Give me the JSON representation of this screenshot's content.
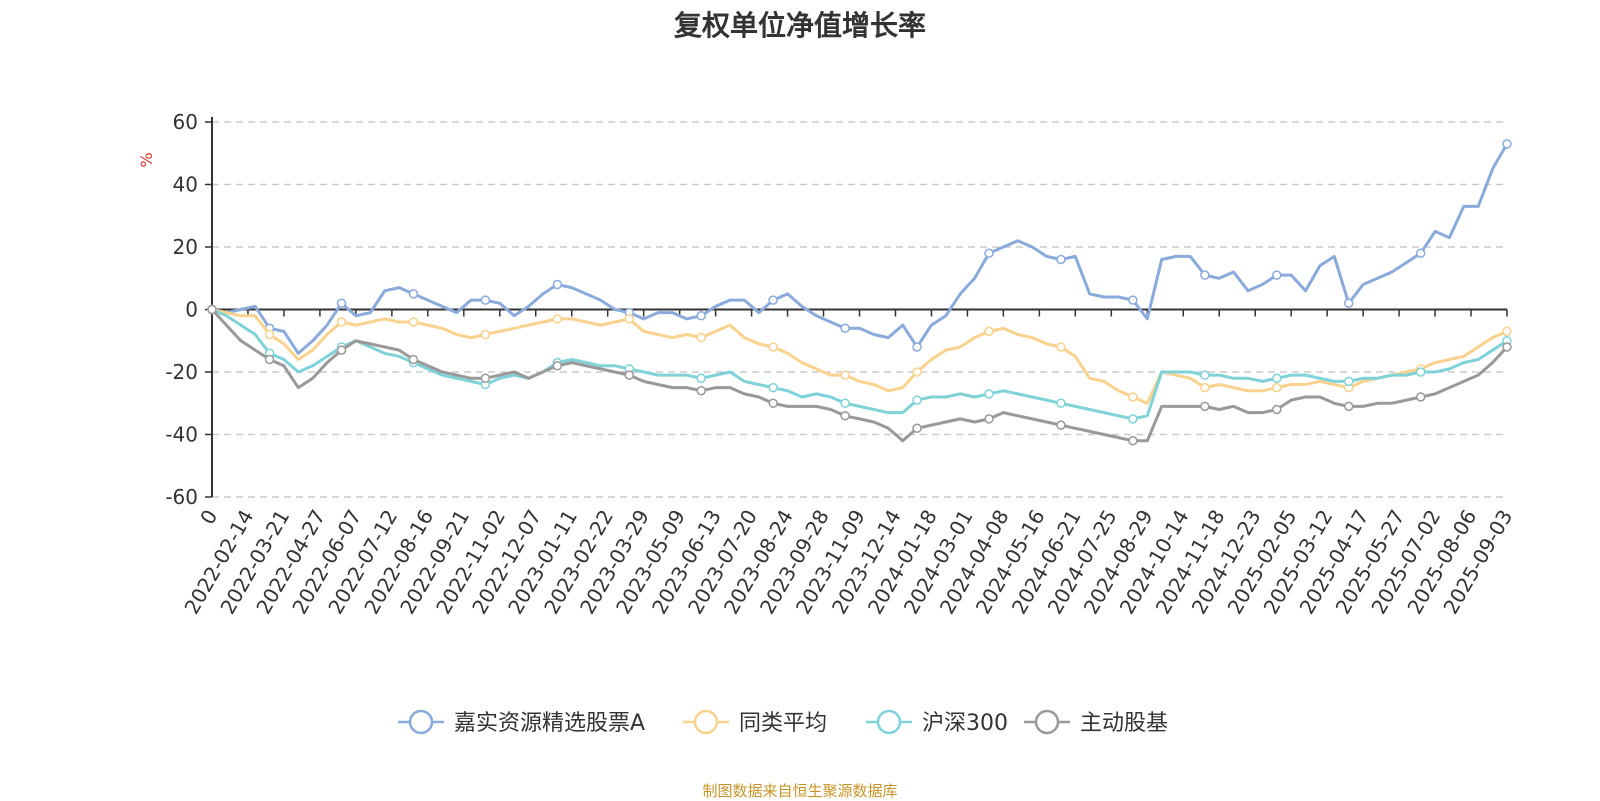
{
  "chart_data": {
    "type": "line",
    "title": "复权单位净值增长率",
    "ylabel": "%",
    "xlabel": "",
    "ylim": [
      -60,
      60
    ],
    "yticks": [
      60,
      40,
      20,
      0,
      -20,
      -40,
      -60
    ],
    "xticks": [
      "0",
      "2022-02-14",
      "2022-03-21",
      "2022-04-27",
      "2022-06-07",
      "2022-07-12",
      "2022-08-16",
      "2022-09-21",
      "2022-11-02",
      "2022-12-07",
      "2023-01-11",
      "2023-02-22",
      "2023-03-29",
      "2023-05-09",
      "2023-06-13",
      "2023-07-20",
      "2023-08-24",
      "2023-09-28",
      "2023-11-09",
      "2023-12-14",
      "2024-01-18",
      "2024-03-01",
      "2024-04-08",
      "2024-05-16",
      "2024-06-21",
      "2024-07-25",
      "2024-08-29",
      "2024-10-14",
      "2024-11-18",
      "2024-12-23",
      "2025-02-05",
      "2025-03-12",
      "2025-04-17",
      "2025-05-27",
      "2025-07-02",
      "2025-08-06",
      "2025-09-03"
    ],
    "grid": true,
    "legend_position": "bottom",
    "series": [
      {
        "name": "嘉实资源精选股票A",
        "color": "#8aaadc",
        "values": [
          0,
          -1,
          0,
          1,
          -6,
          -7,
          -14,
          -10,
          -5,
          2,
          -2,
          -1,
          6,
          7,
          5,
          3,
          1,
          -1,
          3,
          3,
          2,
          -2,
          1,
          5,
          8,
          7,
          5,
          3,
          0,
          -1,
          -3,
          -1,
          -1,
          -3,
          -2,
          1,
          3,
          3,
          -1,
          3,
          5,
          1,
          -2,
          -4,
          -6,
          -6,
          -8,
          -9,
          -5,
          -12,
          -5,
          -2,
          5,
          10,
          18,
          20,
          22,
          20,
          17,
          16,
          17,
          5,
          4,
          4,
          3,
          -3,
          16,
          17,
          17,
          11,
          10,
          12,
          6,
          8,
          11,
          11,
          6,
          14,
          17,
          2,
          8,
          10,
          12,
          15,
          18,
          25,
          23,
          33,
          33,
          45,
          53
        ]
      },
      {
        "name": "同类平均",
        "color": "#f9d28e",
        "values": [
          0,
          -1,
          -2,
          -2,
          -8,
          -11,
          -16,
          -13,
          -8,
          -4,
          -5,
          -4,
          -3,
          -4,
          -4,
          -5,
          -6,
          -8,
          -9,
          -8,
          -7,
          -6,
          -5,
          -4,
          -3,
          -3,
          -4,
          -5,
          -4,
          -3,
          -7,
          -8,
          -9,
          -8,
          -9,
          -7,
          -5,
          -9,
          -11,
          -12,
          -14,
          -17,
          -19,
          -21,
          -21,
          -23,
          -24,
          -26,
          -25,
          -20,
          -16,
          -13,
          -12,
          -9,
          -7,
          -6,
          -8,
          -9,
          -11,
          -12,
          -15,
          -22,
          -23,
          -26,
          -28,
          -30,
          -20,
          -21,
          -22,
          -25,
          -24,
          -25,
          -26,
          -26,
          -25,
          -24,
          -24,
          -23,
          -24,
          -25,
          -23,
          -22,
          -21,
          -20,
          -19,
          -17,
          -16,
          -15,
          -12,
          -9,
          -7
        ]
      },
      {
        "name": "沪深300",
        "color": "#7fd3d8",
        "values": [
          0,
          -2,
          -5,
          -8,
          -14,
          -16,
          -20,
          -18,
          -15,
          -12,
          -10,
          -12,
          -14,
          -15,
          -17,
          -19,
          -21,
          -22,
          -23,
          -24,
          -22,
          -21,
          -22,
          -20,
          -17,
          -16,
          -17,
          -18,
          -18,
          -19,
          -20,
          -21,
          -21,
          -21,
          -22,
          -21,
          -20,
          -23,
          -24,
          -25,
          -26,
          -28,
          -27,
          -28,
          -30,
          -31,
          -32,
          -33,
          -33,
          -29,
          -28,
          -28,
          -27,
          -28,
          -27,
          -26,
          -27,
          -28,
          -29,
          -30,
          -31,
          -32,
          -33,
          -34,
          -35,
          -34,
          -20,
          -20,
          -20,
          -21,
          -21,
          -22,
          -22,
          -23,
          -22,
          -21,
          -21,
          -22,
          -23,
          -23,
          -22,
          -22,
          -21,
          -21,
          -20,
          -20,
          -19,
          -17,
          -16,
          -13,
          -10
        ]
      },
      {
        "name": "主动股基",
        "color": "#999999",
        "values": [
          0,
          -5,
          -10,
          -13,
          -16,
          -18,
          -25,
          -22,
          -17,
          -13,
          -10,
          -11,
          -12,
          -13,
          -16,
          -18,
          -20,
          -21,
          -22,
          -22,
          -21,
          -20,
          -22,
          -20,
          -18,
          -17,
          -18,
          -19,
          -20,
          -21,
          -23,
          -24,
          -25,
          -25,
          -26,
          -25,
          -25,
          -27,
          -28,
          -30,
          -31,
          -31,
          -31,
          -32,
          -34,
          -35,
          -36,
          -38,
          -42,
          -38,
          -37,
          -36,
          -35,
          -36,
          -35,
          -33,
          -34,
          -35,
          -36,
          -37,
          -38,
          -39,
          -40,
          -41,
          -42,
          -42,
          -31,
          -31,
          -31,
          -31,
          -32,
          -31,
          -33,
          -33,
          -32,
          -29,
          -28,
          -28,
          -30,
          -31,
          -31,
          -30,
          -30,
          -29,
          -28,
          -27,
          -25,
          -23,
          -21,
          -17,
          -12
        ]
      }
    ],
    "markers": [
      0,
      4,
      9,
      14,
      19,
      24,
      29,
      34,
      39,
      44,
      49,
      54,
      59,
      64,
      69,
      74,
      79,
      84,
      90
    ]
  },
  "footer": "制图数据来自恒生聚源数据库"
}
